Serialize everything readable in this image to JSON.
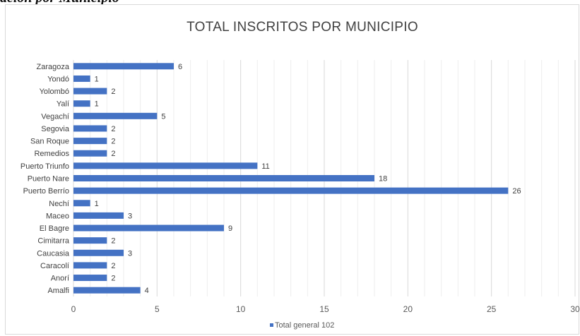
{
  "caption": "ación por Municipio",
  "chart_data": {
    "type": "bar",
    "orientation": "horizontal",
    "title": "TOTAL INSCRITOS POR MUNICIPIO",
    "categories": [
      "Zaragoza",
      "Yondó",
      "Yolombó",
      "Yalí",
      "Vegachí",
      "Segovia",
      "San Roque",
      "Remedios",
      "Puerto Triunfo",
      "Puerto Nare",
      "Puerto Berrío",
      "Nechí",
      "Maceo",
      "El Bagre",
      "Cimitarra",
      "Caucasia",
      "Caracolí",
      "Anorí",
      "Amalfi"
    ],
    "series": [
      {
        "name": "Total general 102",
        "values": [
          6,
          1,
          2,
          1,
          5,
          2,
          2,
          2,
          11,
          18,
          26,
          1,
          3,
          9,
          2,
          3,
          2,
          2,
          4
        ]
      }
    ],
    "xlim": [
      0,
      30
    ],
    "xticks": [
      0,
      5,
      10,
      15,
      20,
      25,
      30
    ],
    "grid": true,
    "legend": "bottom",
    "bar_color": "#4472c4"
  }
}
